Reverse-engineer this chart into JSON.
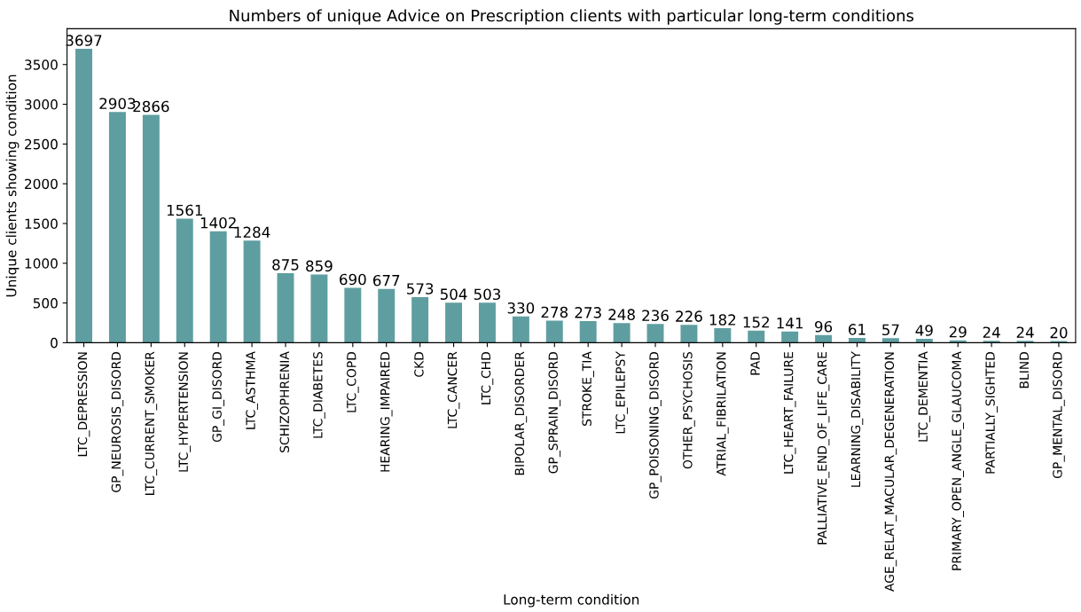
{
  "chart_data": {
    "type": "bar",
    "title": "Numbers of unique Advice on Prescription clients with particular long-term conditions",
    "xlabel": "Long-term condition",
    "ylabel": "Unique clients showing condition",
    "categories": [
      "LTC_DEPRESSION",
      "GP_NEUROSIS_DISORD",
      "LTC_CURRENT_SMOKER",
      "LTC_HYPERTENSION",
      "GP_GI_DISORD",
      "LTC_ASTHMA",
      "SCHIZOPHRENIA",
      "LTC_DIABETES",
      "LTC_COPD",
      "HEARING_IMPAIRED",
      "CKD",
      "LTC_CANCER",
      "LTC_CHD",
      "BIPOLAR_DISORDER",
      "GP_SPRAIN_DISORD",
      "STROKE_TIA",
      "LTC_EPILEPSY",
      "GP_POISONING_DISORD",
      "OTHER_PSYCHOSIS",
      "ATRIAL_FIBRILATION",
      "PAD",
      "LTC_HEART_FAILURE",
      "PALLIATIVE_END_OF_LIFE_CARE",
      "LEARNING_DISABILITY",
      "AGE_RELAT_MACULAR_DEGENERATION",
      "LTC_DEMENTIA",
      "PRIMARY_OPEN_ANGLE_GLAUCOMA",
      "PARTIALLY_SIGHTED",
      "BLIND",
      "GP_MENTAL_DISORD"
    ],
    "values": [
      3697,
      2903,
      2866,
      1561,
      1402,
      1284,
      875,
      859,
      690,
      677,
      573,
      504,
      503,
      330,
      278,
      273,
      248,
      236,
      226,
      182,
      152,
      141,
      96,
      61,
      57,
      49,
      29,
      24,
      24,
      20
    ],
    "color": "#5f9ea0",
    "ylim": [
      0,
      3950
    ],
    "yticks": [
      0,
      500,
      1000,
      1500,
      2000,
      2500,
      3000,
      3500
    ],
    "data_labels": true,
    "grid": false,
    "legend": false
  }
}
